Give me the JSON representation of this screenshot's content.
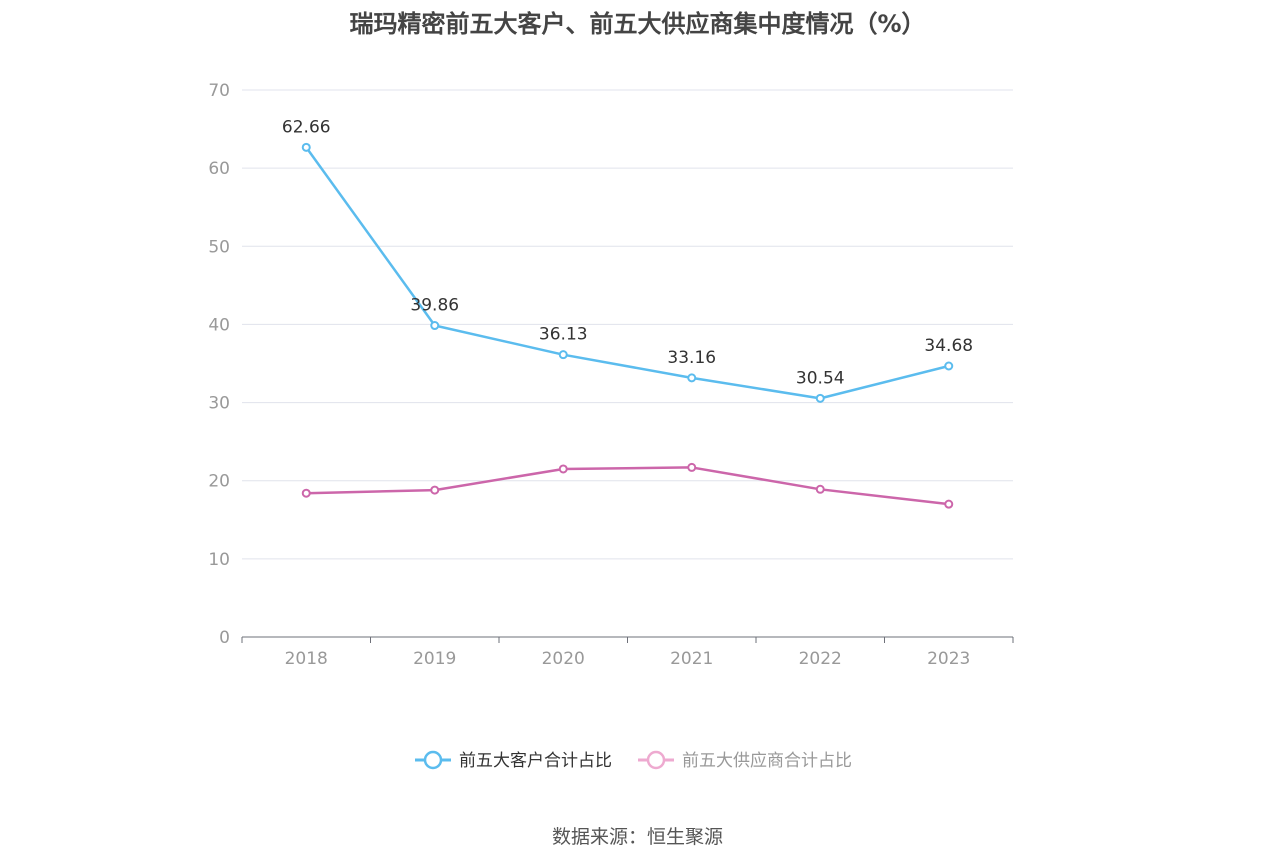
{
  "title": "瑞玛精密前五大客户、前五大供应商集中度情况（%）",
  "source": "数据来源：恒生聚源",
  "chart_data": {
    "type": "line",
    "title": "瑞玛精密前五大客户、前五大供应商集中度情况（%）",
    "x": [
      "2018",
      "2019",
      "2020",
      "2021",
      "2022",
      "2023"
    ],
    "ylim": [
      0,
      70
    ],
    "yticks": [
      0,
      10,
      20,
      30,
      40,
      50,
      60,
      70
    ],
    "grid": true,
    "legend_position": "bottom",
    "series": [
      {
        "name": "前五大客户合计占比",
        "color": "#5bbcee",
        "values": [
          62.66,
          39.86,
          36.13,
          33.16,
          30.54,
          34.68
        ],
        "labels": [
          "62.66",
          "39.86",
          "36.13",
          "33.16",
          "30.54",
          "34.68"
        ],
        "show_labels": true,
        "legend_text_color": "#333333"
      },
      {
        "name": "前五大供应商合计占比",
        "color": "#cc66aa",
        "legend_color": "#eeaad0",
        "values": [
          18.4,
          18.8,
          21.5,
          21.7,
          18.9,
          17.0
        ],
        "show_labels": false,
        "legend_text_color": "#999999"
      }
    ]
  }
}
